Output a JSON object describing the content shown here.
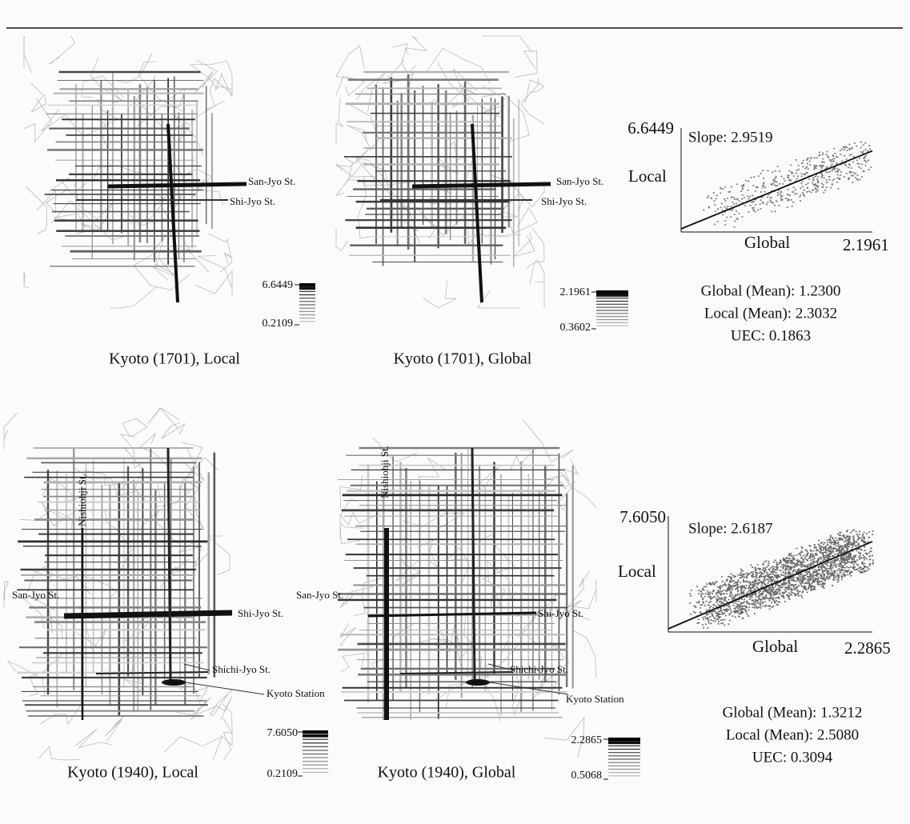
{
  "maps": [
    {
      "caption": "Kyoto (1701), Local",
      "legend_max": "6.6449",
      "legend_min": "0.2109",
      "streets": [
        "San-Jyo St.",
        "Shi-Jyo St."
      ]
    },
    {
      "caption": "Kyoto (1701), Global",
      "legend_max": "2.1961",
      "legend_min": "0.3602",
      "streets": [
        "San-Jyo St.",
        "Shi-Jyo St."
      ]
    },
    {
      "caption": "Kyoto (1940), Local",
      "legend_max": "7.6050",
      "legend_min": "0.2109",
      "streets": [
        "Nishiohji St.",
        "San-Jyo St.",
        "Shi-Jyo St.",
        "Shichi-Jyo St.",
        "Kyoto Station"
      ]
    },
    {
      "caption": "Kyoto (1940), Global",
      "legend_max": "2.2865",
      "legend_min": "0.5068",
      "streets": [
        "Nishiohji St.",
        "San-Jyo St.",
        "Shi-Jyo St.",
        "Shichi-Jyo St.",
        "Kyoto Station"
      ]
    }
  ],
  "scatters": [
    {
      "y_max": "6.6449",
      "x_max": "2.1961",
      "y_label": "Local",
      "x_label": "Global",
      "slope": "Slope: 2.9519",
      "stats": [
        "Global (Mean): 1.2300",
        "Local (Mean): 2.3032",
        "UEC: 0.1863"
      ]
    },
    {
      "y_max": "7.6050",
      "x_max": "2.2865",
      "y_label": "Local",
      "x_label": "Global",
      "slope": "Slope: 2.6187",
      "stats": [
        "Global (Mean): 1.3212",
        "Local (Mean): 2.5080",
        "UEC: 0.3094"
      ]
    }
  ]
}
